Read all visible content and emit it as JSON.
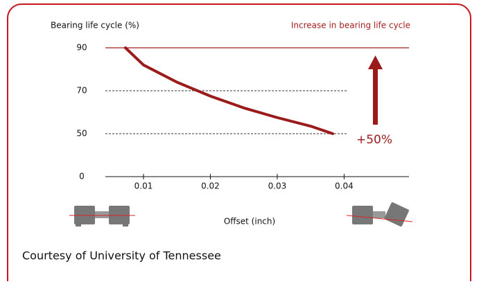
{
  "chart_data": {
    "type": "line",
    "y_label": "Bearing life cycle (%)",
    "legend_title": "Increase in bearing life cycle",
    "x_label": "Offset (inch)",
    "annotation": "+50%",
    "credit": "Courtesy of University of Tennessee",
    "x": [
      0.0073,
      0.01,
      0.015,
      0.02,
      0.025,
      0.03,
      0.035,
      0.0383
    ],
    "series": [
      {
        "name": "Increase in bearing life cycle",
        "color": "#9b1b1b",
        "values": [
          90,
          82,
          74,
          67.5,
          62,
          57.5,
          53.5,
          50
        ]
      }
    ],
    "reference_line": {
      "value": 90,
      "color": "#a31f1f"
    },
    "xlim": [
      0.0043,
      0.0497
    ],
    "xticks": [
      0.01,
      0.02,
      0.03,
      0.04
    ],
    "ylim": [
      0,
      90
    ],
    "yticks": [
      0,
      50,
      70,
      90
    ],
    "grid": true
  }
}
